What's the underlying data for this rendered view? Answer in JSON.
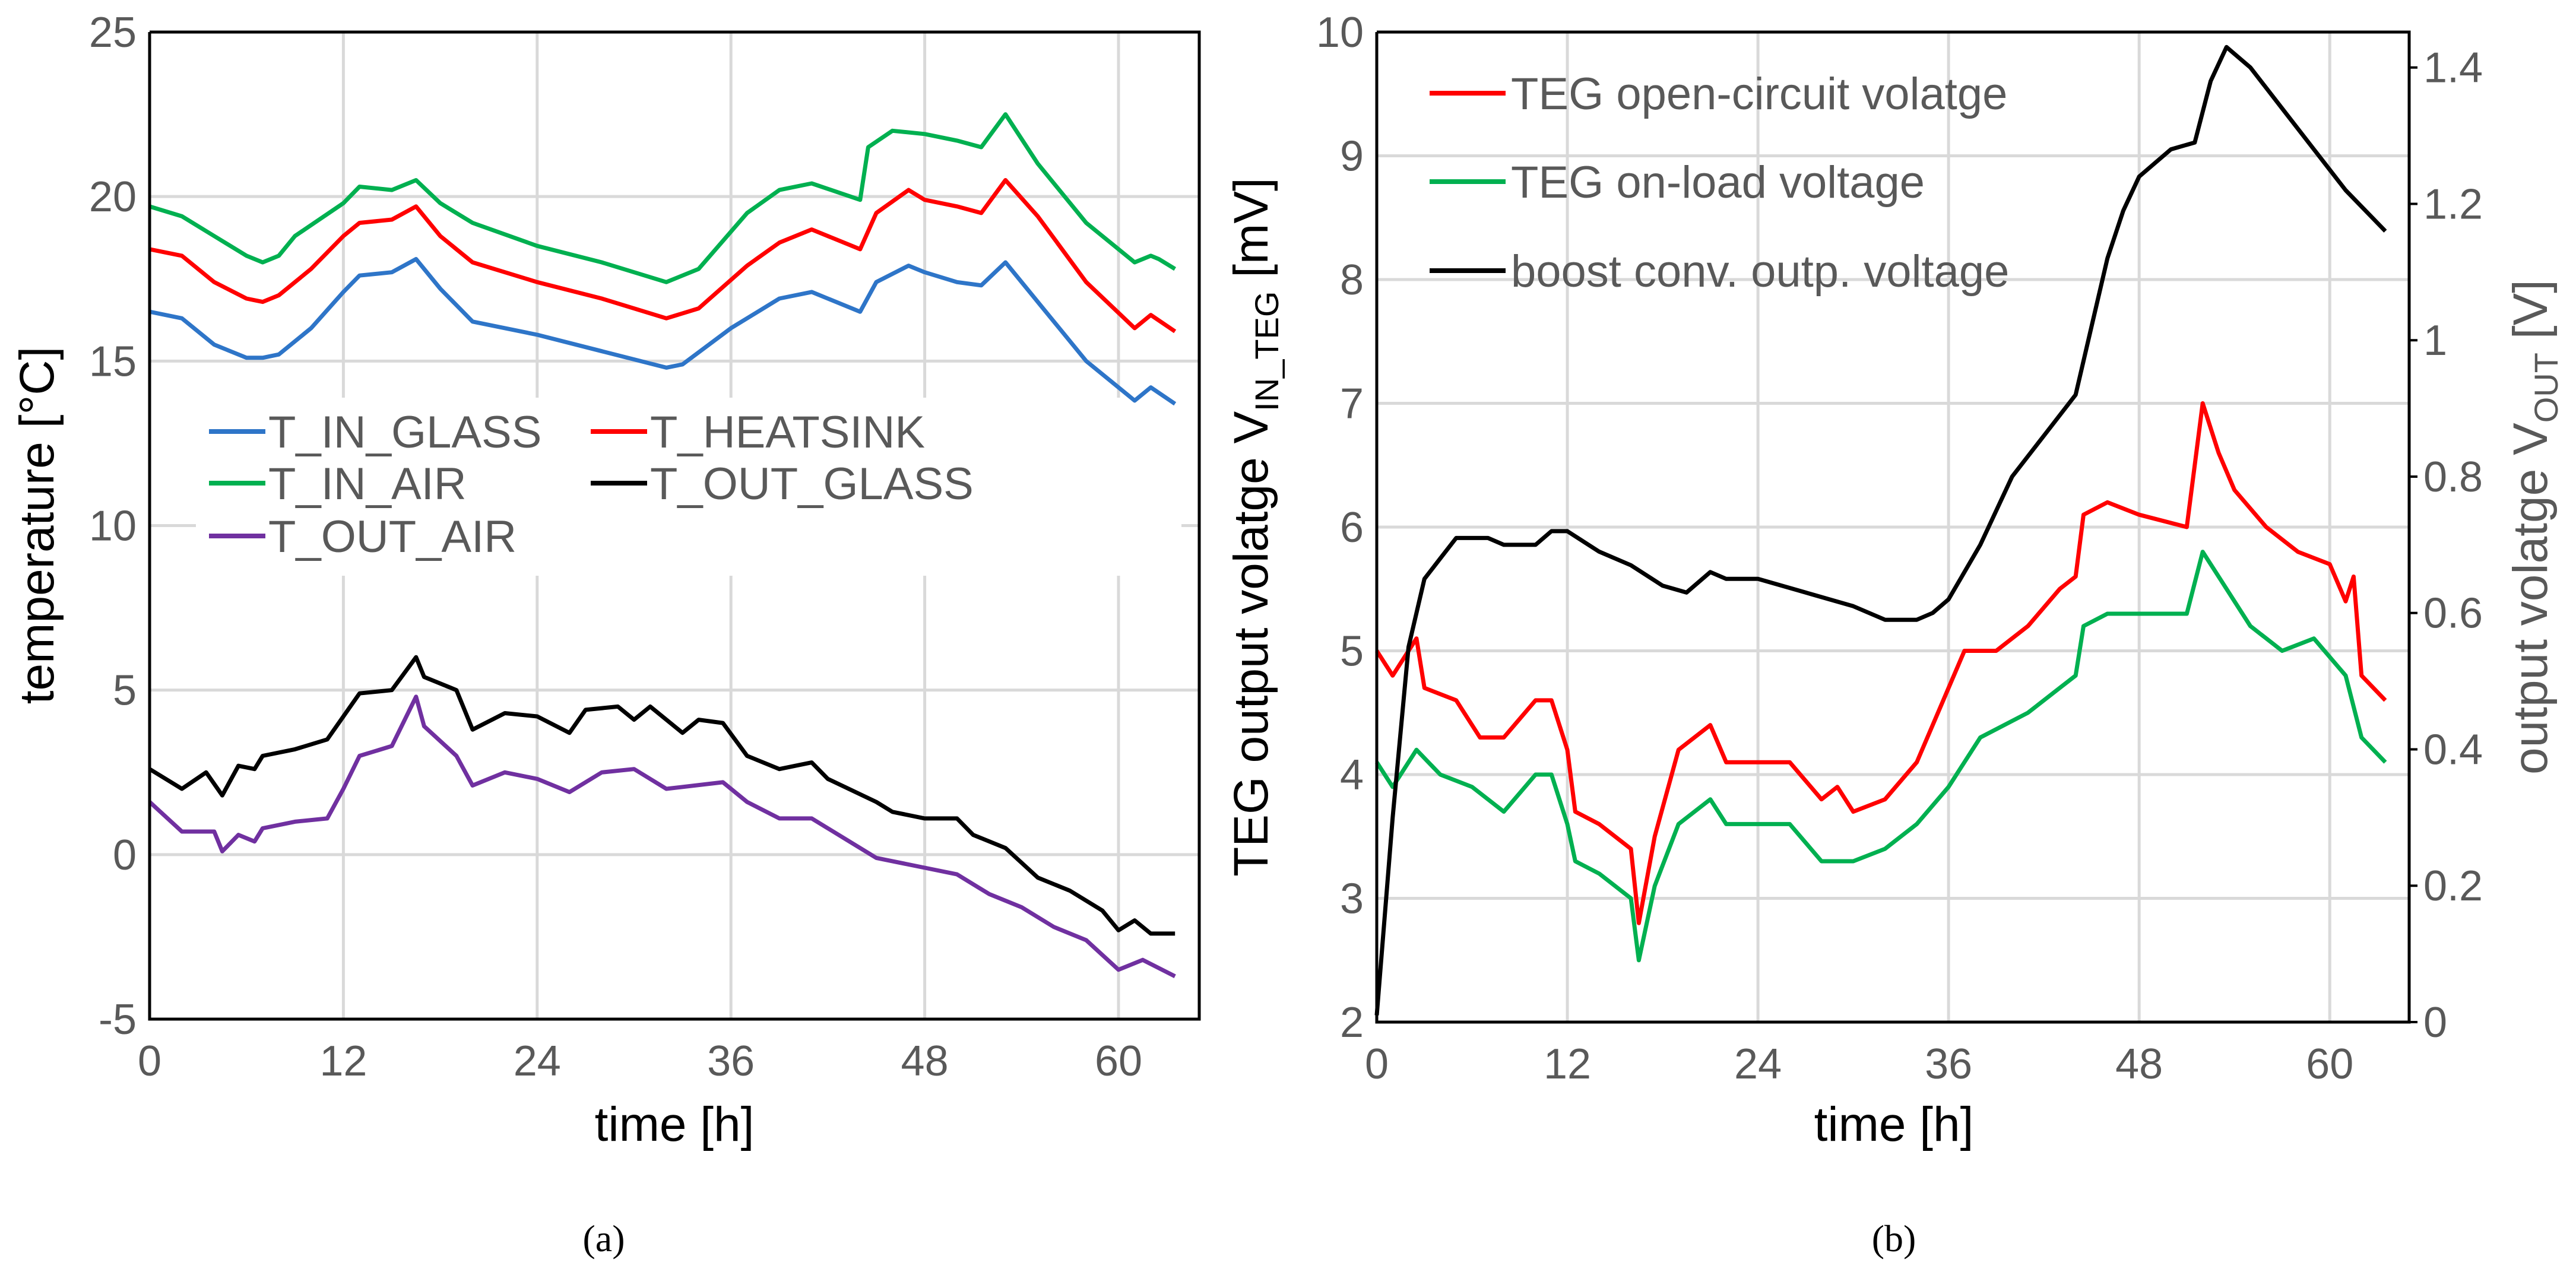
{
  "chart_data": [
    {
      "type": "line",
      "panel_label": "a",
      "xlabel": "time [h]",
      "ylabel": "temperature [°C]",
      "xlim": [
        0,
        65
      ],
      "ylim": [
        -5,
        25
      ],
      "xticks": [
        0,
        12,
        24,
        36,
        48,
        60
      ],
      "yticks": [
        -5,
        0,
        5,
        10,
        15,
        20,
        25
      ],
      "grid": true,
      "legend_position": "center-left",
      "series": [
        {
          "name": "T_IN_GLASS",
          "color": "#2e75c8",
          "x": [
            0,
            2,
            4,
            6,
            7,
            8,
            10,
            12,
            13,
            15,
            16.5,
            18,
            20,
            24,
            28,
            32,
            33,
            36,
            39,
            41,
            44,
            45,
            47,
            48,
            50,
            51.5,
            53,
            55,
            58,
            61,
            62,
            63.5
          ],
          "y": [
            16.5,
            16.3,
            15.5,
            15.1,
            15.1,
            15.2,
            16.0,
            17.1,
            17.6,
            17.7,
            18.1,
            17.2,
            16.2,
            15.8,
            15.3,
            14.8,
            14.9,
            16.0,
            16.9,
            17.1,
            16.5,
            17.4,
            17.9,
            17.7,
            17.4,
            17.3,
            18.0,
            16.8,
            15.0,
            13.8,
            14.2,
            13.7
          ]
        },
        {
          "name": "T_HEATSINK",
          "color": "#ff0000",
          "x": [
            0,
            2,
            4,
            6,
            7,
            8,
            10,
            12,
            13,
            15,
            16.5,
            18,
            20,
            24,
            28,
            32,
            34,
            37,
            39,
            41,
            44,
            45,
            47,
            48,
            50,
            51.5,
            53,
            55,
            58,
            61,
            62,
            63.5
          ],
          "y": [
            18.4,
            18.2,
            17.4,
            16.9,
            16.8,
            17.0,
            17.8,
            18.8,
            19.2,
            19.3,
            19.7,
            18.8,
            18.0,
            17.4,
            16.9,
            16.3,
            16.6,
            17.9,
            18.6,
            19.0,
            18.4,
            19.5,
            20.2,
            19.9,
            19.7,
            19.5,
            20.5,
            19.4,
            17.4,
            16.0,
            16.4,
            15.9
          ]
        },
        {
          "name": "T_IN_AIR",
          "color": "#00b050",
          "x": [
            0,
            2,
            4,
            6,
            7,
            8,
            9,
            12,
            13,
            15,
            16.5,
            18,
            20,
            24,
            28,
            32,
            34,
            37,
            39,
            41,
            44,
            44.5,
            46,
            48,
            50,
            51.5,
            53,
            55,
            58,
            61,
            62,
            62.5,
            63.5
          ],
          "y": [
            19.7,
            19.4,
            18.8,
            18.2,
            18.0,
            18.2,
            18.8,
            19.8,
            20.3,
            20.2,
            20.5,
            19.8,
            19.2,
            18.5,
            18.0,
            17.4,
            17.8,
            19.5,
            20.2,
            20.4,
            19.9,
            21.5,
            22.0,
            21.9,
            21.7,
            21.5,
            22.5,
            21.0,
            19.2,
            18.0,
            18.2,
            18.1,
            17.8
          ]
        },
        {
          "name": "T_OUT_GLASS",
          "color": "#000000",
          "x": [
            0,
            2,
            3.5,
            4.5,
            5.5,
            6.5,
            7,
            9,
            11,
            12,
            13,
            15,
            16.5,
            17,
            19,
            20,
            22,
            24,
            26,
            27,
            29,
            30,
            31,
            33,
            34,
            35.5,
            37,
            39,
            41,
            42,
            45,
            46,
            48,
            50,
            51,
            53,
            55,
            57,
            59,
            60,
            61,
            62,
            63.5
          ],
          "y": [
            2.6,
            2.0,
            2.5,
            1.8,
            2.7,
            2.6,
            3.0,
            3.2,
            3.5,
            4.2,
            4.9,
            5.0,
            6.0,
            5.4,
            5.0,
            3.8,
            4.3,
            4.2,
            3.7,
            4.4,
            4.5,
            4.1,
            4.5,
            3.7,
            4.1,
            4.0,
            3.0,
            2.6,
            2.8,
            2.3,
            1.6,
            1.3,
            1.1,
            1.1,
            0.6,
            0.2,
            -0.7,
            -1.1,
            -1.7,
            -2.3,
            -2.0,
            -2.4,
            -2.4
          ]
        },
        {
          "name": "T_OUT_AIR",
          "color": "#7030a0",
          "x": [
            0,
            2,
            4,
            4.5,
            5.5,
            6.5,
            7,
            9,
            11,
            12,
            13,
            15,
            16.5,
            17,
            19,
            20,
            22,
            24,
            26,
            28,
            30,
            32,
            35.5,
            37,
            39,
            41,
            43,
            45,
            48,
            50,
            52,
            54,
            56,
            58,
            60,
            61.5,
            63.5
          ],
          "y": [
            1.6,
            0.7,
            0.7,
            0.1,
            0.6,
            0.4,
            0.8,
            1.0,
            1.1,
            2.0,
            3.0,
            3.3,
            4.8,
            3.9,
            3.0,
            2.1,
            2.5,
            2.3,
            1.9,
            2.5,
            2.6,
            2.0,
            2.2,
            1.6,
            1.1,
            1.1,
            0.5,
            -0.1,
            -0.4,
            -0.6,
            -1.2,
            -1.6,
            -2.2,
            -2.6,
            -3.5,
            -3.2,
            -3.7
          ]
        }
      ]
    },
    {
      "type": "line",
      "panel_label": "b",
      "xlabel": "time [h]",
      "ylabel_left": {
        "main": "TEG output volatge V",
        "sub": "IN_TEG",
        "unit": " [mV]"
      },
      "ylabel_right": {
        "main": "output volatge V",
        "sub": "OUT",
        "unit": " [V]"
      },
      "xlim": [
        0,
        65
      ],
      "ylim_left": [
        2,
        10
      ],
      "ylim_right": [
        0,
        1.452
      ],
      "xticks": [
        0,
        12,
        24,
        36,
        48,
        60
      ],
      "yticks_left": [
        2,
        3,
        4,
        5,
        6,
        7,
        8,
        9,
        10
      ],
      "yticks_right": [
        0,
        0.2,
        0.4,
        0.6,
        0.8,
        1,
        1.2,
        1.4
      ],
      "grid": true,
      "legend_position": "top-left",
      "series": [
        {
          "name": "TEG open-circuit volatge",
          "color": "#ff0000",
          "axis": "left",
          "x": [
            0,
            1,
            2,
            2.5,
            3,
            5,
            6.5,
            8,
            10,
            11,
            12,
            12.5,
            14,
            16,
            16.5,
            17.5,
            19,
            21,
            22,
            23,
            26,
            28,
            29,
            30,
            32,
            34,
            35,
            37,
            39,
            41,
            43,
            44,
            44.5,
            46,
            48,
            51,
            52,
            53,
            54,
            56,
            58,
            60,
            61,
            61.5,
            62,
            63.5
          ],
          "y": [
            5.0,
            4.8,
            5.0,
            5.1,
            4.7,
            4.6,
            4.3,
            4.3,
            4.6,
            4.6,
            4.2,
            3.7,
            3.6,
            3.4,
            2.8,
            3.5,
            4.2,
            4.4,
            4.1,
            4.1,
            4.1,
            3.8,
            3.9,
            3.7,
            3.8,
            4.1,
            4.4,
            5.0,
            5.0,
            5.2,
            5.5,
            5.6,
            6.1,
            6.2,
            6.1,
            6.0,
            7.0,
            6.6,
            6.3,
            6.0,
            5.8,
            5.7,
            5.4,
            5.6,
            4.8,
            4.6
          ]
        },
        {
          "name": "TEG on-load voltage",
          "color": "#00b050",
          "axis": "left",
          "x": [
            0,
            1,
            2.5,
            4,
            6,
            8,
            10,
            11,
            12,
            12.5,
            14,
            16,
            16.5,
            17.5,
            19,
            21,
            22,
            23,
            26,
            28,
            30,
            32,
            34,
            36,
            38,
            41,
            43,
            44,
            44.5,
            46,
            48,
            51,
            52,
            53,
            55,
            57,
            59,
            61,
            62,
            63.5
          ],
          "y": [
            4.1,
            3.9,
            4.2,
            4.0,
            3.9,
            3.7,
            4.0,
            4.0,
            3.6,
            3.3,
            3.2,
            3.0,
            2.5,
            3.1,
            3.6,
            3.8,
            3.6,
            3.6,
            3.6,
            3.3,
            3.3,
            3.4,
            3.6,
            3.9,
            4.3,
            4.5,
            4.7,
            4.8,
            5.2,
            5.3,
            5.3,
            5.3,
            5.8,
            5.6,
            5.2,
            5.0,
            5.1,
            4.8,
            4.3,
            4.1
          ]
        },
        {
          "name": "boost conv. outp. voltage",
          "color": "#000000",
          "axis": "right",
          "x": [
            0,
            1,
            2,
            3,
            4,
            5,
            7,
            8,
            10,
            11,
            12,
            14,
            16,
            18,
            19.5,
            21,
            22,
            24,
            27,
            30,
            32,
            34,
            35,
            36,
            38,
            40,
            42,
            44,
            45,
            46,
            47,
            48,
            50,
            51.5,
            52.5,
            53.5,
            55,
            57,
            59,
            61,
            63.5
          ],
          "y": [
            0.01,
            0.3,
            0.55,
            0.65,
            0.68,
            0.71,
            0.71,
            0.7,
            0.7,
            0.72,
            0.72,
            0.69,
            0.67,
            0.64,
            0.63,
            0.66,
            0.65,
            0.65,
            0.63,
            0.61,
            0.59,
            0.59,
            0.6,
            0.62,
            0.7,
            0.8,
            0.86,
            0.92,
            1.02,
            1.12,
            1.19,
            1.24,
            1.28,
            1.29,
            1.38,
            1.43,
            1.4,
            1.34,
            1.28,
            1.22,
            1.16
          ]
        }
      ]
    }
  ],
  "captions": {
    "a": "(a)",
    "b": "(b)"
  }
}
